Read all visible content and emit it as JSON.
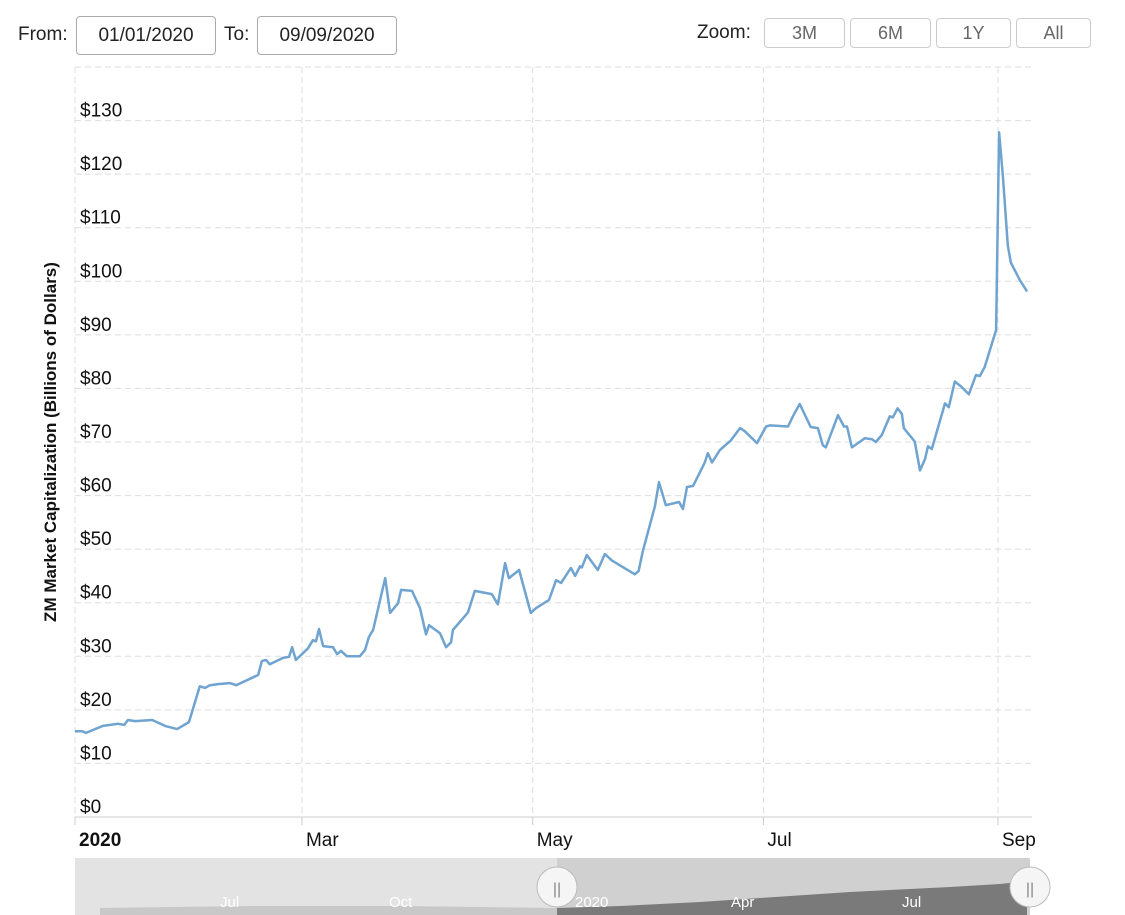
{
  "controls": {
    "from_label": "From:",
    "from_value": "01/01/2020",
    "to_label": "To:",
    "to_value": "09/09/2020",
    "zoom_label": "Zoom:",
    "zoom_buttons": [
      "3M",
      "6M",
      "1Y",
      "All"
    ]
  },
  "chart_data": {
    "type": "line",
    "y_axis_label": "ZM Market Capitalization (Billions of Dollars)",
    "color": "#6fa3d0",
    "grid": true,
    "xlim": [
      0,
      253
    ],
    "xticks": [
      {
        "value": 0,
        "label": "2020"
      },
      {
        "value": 60,
        "label": "Mar"
      },
      {
        "value": 121,
        "label": "May"
      },
      {
        "value": 182,
        "label": "Jul"
      },
      {
        "value": 244,
        "label": "Sep"
      }
    ],
    "ylim": [
      0,
      140
    ],
    "yticks": [
      {
        "value": 0,
        "label": "$0"
      },
      {
        "value": 10,
        "label": "$10"
      },
      {
        "value": 20,
        "label": "$20"
      },
      {
        "value": 30,
        "label": "$30"
      },
      {
        "value": 40,
        "label": "$40"
      },
      {
        "value": 50,
        "label": "$50"
      },
      {
        "value": 60,
        "label": "$60"
      },
      {
        "value": 70,
        "label": "$70"
      },
      {
        "value": 80,
        "label": "$80"
      },
      {
        "value": 90,
        "label": "$90"
      },
      {
        "value": 100,
        "label": "$100"
      },
      {
        "value": 110,
        "label": "$110"
      },
      {
        "value": 120,
        "label": "$120"
      },
      {
        "value": 130,
        "label": "$130"
      }
    ],
    "x": [
      0,
      1.9,
      2.9,
      5.3,
      7.4,
      11.4,
      13,
      14,
      15.9,
      20.4,
      23.8,
      27,
      30.1,
      33,
      34.4,
      35.7,
      37.8,
      41,
      42.6,
      48.4,
      49.4,
      50.5,
      51.5,
      55,
      56.6,
      57.4,
      58.4,
      61.6,
      62.9,
      63.7,
      64.5,
      65.6,
      68.2,
      69.3,
      70.3,
      71.9,
      75.3,
      76.7,
      77.7,
      78.8,
      82,
      83.3,
      85.4,
      86.2,
      89.1,
      91.2,
      92.8,
      93.6,
      96.5,
      98.1,
      99.4,
      99.9,
      103.9,
      105.7,
      110.2,
      111.8,
      113.7,
      114.7,
      117.4,
      120.5,
      121.9,
      125.3,
      127.2,
      128.5,
      131.1,
      132.2,
      133.5,
      134,
      135.3,
      138.2,
      140.1,
      141.9,
      148,
      149,
      150.1,
      153.3,
      154.4,
      156.2,
      159.7,
      160.7,
      161.8,
      163.4,
      166.5,
      167.3,
      168.4,
      170.5,
      173.4,
      175.8,
      177.1,
      180.3,
      182.7,
      183.7,
      188.5,
      189.8,
      191.6,
      194.5,
      196.4,
      197.7,
      198.5,
      201.7,
      203.3,
      204.1,
      205.4,
      208.8,
      210.7,
      211.7,
      213.3,
      215.4,
      216.2,
      217.5,
      218.6,
      219.1,
      222,
      223.4,
      224.7,
      225.5,
      226.5,
      230,
      231,
      232.6,
      234.2,
      236.3,
      238.2,
      239.2,
      240.5,
      243.5,
      244.3,
      245.3,
      246.6,
      247.4,
      249.8,
      251.7
    ],
    "values": [
      16.0,
      16.0,
      15.7,
      16.4,
      17.0,
      17.4,
      17.2,
      18.1,
      17.9,
      18.1,
      17.0,
      16.4,
      17.7,
      24.4,
      24.1,
      24.6,
      24.8,
      25.0,
      24.6,
      26.5,
      29.1,
      29.3,
      28.5,
      29.7,
      29.9,
      31.7,
      29.3,
      31.5,
      33.0,
      32.8,
      35.1,
      31.9,
      31.7,
      30.4,
      31.0,
      30.0,
      30.0,
      31.2,
      33.6,
      34.9,
      44.6,
      38.1,
      39.9,
      42.4,
      42.2,
      39.0,
      34.1,
      35.8,
      34.3,
      31.7,
      32.6,
      34.9,
      38.2,
      42.2,
      41.6,
      39.7,
      47.4,
      44.6,
      46.1,
      38.1,
      39.0,
      40.5,
      44.2,
      43.7,
      46.5,
      45.0,
      46.8,
      46.6,
      48.9,
      46.1,
      49.1,
      47.9,
      45.3,
      45.9,
      49.6,
      58.0,
      62.5,
      58.2,
      58.8,
      57.5,
      61.6,
      61.8,
      66.2,
      67.9,
      66.2,
      68.5,
      70.3,
      72.6,
      72.0,
      69.8,
      72.9,
      73.1,
      72.9,
      74.8,
      77.1,
      72.8,
      72.6,
      69.4,
      69.0,
      75.0,
      72.9,
      72.9,
      69.0,
      70.7,
      70.5,
      70.0,
      71.3,
      74.8,
      74.6,
      76.3,
      75.2,
      72.6,
      70.1,
      64.7,
      66.8,
      69.2,
      68.7,
      77.2,
      76.5,
      81.3,
      80.4,
      78.9,
      82.5,
      82.3,
      84.0,
      90.9,
      127.8,
      119.6,
      106.7,
      103.5,
      100.2,
      98.1
    ]
  },
  "navigator": {
    "labels": [
      "Jul",
      "Oct",
      "2020",
      "Apr",
      "Jul"
    ]
  }
}
